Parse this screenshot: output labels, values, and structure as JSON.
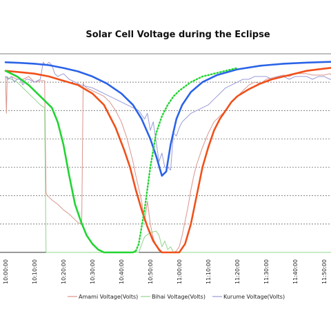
{
  "chart_data": {
    "type": "line",
    "title": "Solar Cell Voltage during the Eclipse",
    "xlabel": "",
    "ylabel": "",
    "x_ticks": [
      "10:00:00",
      "10:10:00",
      "10:20:00",
      "10:30:00",
      "10:40:00",
      "10:50:00",
      "11:00:00",
      "11:10:00",
      "11:20:00",
      "11:30:00",
      "11:40:00",
      "11:50:00"
    ],
    "x_range_minutes": [
      0,
      115
    ],
    "y_range": [
      0,
      7
    ],
    "y_gridlines": [
      1,
      2,
      3,
      4,
      5,
      6
    ],
    "legend_position": "bottom",
    "colors": {
      "amami": "#d9938c",
      "bihai": "#8fd68a",
      "kurume": "#9a9ad8",
      "fit_blue": "#2a63e8",
      "fit_orange": "#f0501a",
      "fit_green": "#22d432",
      "grid": "#555555"
    },
    "series": [
      {
        "name": "Amami Voltage(Volts)",
        "style": "measured",
        "x": [
          0,
          0.3,
          0.6,
          1,
          2,
          4,
          6,
          8,
          10,
          12,
          13.5,
          14,
          14.4,
          15,
          16,
          18,
          20,
          22,
          25,
          26.3,
          26.8,
          27,
          28,
          30,
          32,
          34,
          36,
          38,
          40,
          42,
          44,
          45,
          47,
          48,
          49,
          50,
          51,
          52,
          53,
          54,
          55,
          56,
          57,
          58,
          59,
          60,
          61,
          62,
          63,
          64,
          65,
          66,
          67,
          68,
          70,
          72,
          74,
          76,
          78,
          80,
          82,
          84,
          86,
          88,
          90,
          92,
          94,
          96,
          98,
          100,
          102,
          104,
          106,
          108,
          110,
          112,
          113,
          113.5,
          114,
          114.5,
          115
        ],
        "y": [
          6.2,
          4.9,
          6.2,
          6.1,
          6.2,
          6.1,
          6.1,
          6.2,
          6.0,
          6.05,
          6.05,
          2.1,
          2.0,
          1.95,
          1.85,
          1.7,
          1.5,
          1.35,
          1.05,
          1.0,
          6.0,
          5.9,
          5.8,
          5.7,
          5.6,
          5.5,
          5.3,
          5.0,
          4.6,
          4.0,
          3.2,
          2.7,
          1.8,
          1.1,
          1.8,
          1.0,
          0.5,
          0.25,
          0.05,
          0.0,
          0.0,
          0.0,
          0.0,
          0.0,
          0.05,
          0.2,
          0.6,
          1.1,
          1.6,
          2.2,
          2.7,
          3.1,
          3.4,
          3.7,
          4.2,
          4.6,
          4.8,
          5.0,
          5.3,
          5.5,
          5.7,
          5.9,
          6.0,
          5.95,
          6.1,
          6.15,
          6.2,
          6.25,
          6.2,
          6.3,
          6.3,
          6.3,
          6.25,
          6.25,
          6.25,
          6.3,
          6.2,
          2.0,
          6.1,
          6.2,
          6.2
        ]
      },
      {
        "name": "Bihai Voltage(Volts)",
        "style": "measured",
        "x": [
          0,
          2,
          4,
          6,
          8,
          10,
          12,
          13.5,
          14,
          14.5,
          15,
          16,
          18,
          20,
          22,
          24,
          26,
          28,
          30,
          32,
          34,
          36,
          38,
          40,
          42,
          44,
          46,
          48,
          50,
          52,
          53,
          54,
          55,
          56,
          57,
          58,
          60,
          62,
          64,
          66,
          68,
          70,
          72,
          74,
          76,
          78,
          80,
          82,
          84,
          86,
          88,
          90,
          92,
          94,
          96,
          98,
          100,
          102,
          104,
          106,
          108,
          110,
          112,
          114,
          115
        ],
        "y": [
          6.2,
          6.1,
          6.0,
          5.8,
          5.6,
          5.4,
          5.2,
          5.1,
          0.0,
          0.0,
          0.0,
          0.0,
          0.0,
          0.0,
          0.0,
          0.0,
          0.0,
          0.0,
          0.0,
          0.0,
          0.0,
          0.0,
          0.0,
          0.0,
          0.0,
          0.0,
          0.0,
          0.55,
          0.7,
          0.75,
          0.6,
          0.2,
          0.4,
          0.1,
          0.2,
          0.0,
          0.0,
          0.0,
          0.0,
          0.0,
          0.0,
          0.0,
          0.0,
          0.0,
          0.0,
          0.0,
          0.0,
          0.0,
          0.0,
          0.0,
          0.0,
          0.0,
          0.0,
          0.0,
          0.0,
          0.0,
          0.0,
          0.0,
          0.0,
          0.0,
          0.0,
          0.0,
          0.0,
          0.0,
          0.0
        ]
      },
      {
        "name": "Kurume Voltage(Volts)",
        "style": "measured",
        "x": [
          0,
          1,
          2,
          3,
          4,
          5,
          6,
          7,
          8,
          10,
          12,
          13,
          14,
          15,
          16,
          17,
          18,
          20,
          22,
          24,
          26,
          28,
          30,
          32,
          34,
          36,
          38,
          40,
          42,
          44,
          46,
          48,
          49,
          50,
          51,
          52,
          53,
          54,
          55,
          56,
          57,
          58,
          59,
          60,
          61,
          62,
          64,
          66,
          68,
          70,
          72,
          74,
          76,
          78,
          80,
          82,
          84,
          86,
          88,
          90,
          92,
          94,
          96,
          98,
          100,
          102,
          104,
          106,
          108,
          110,
          112,
          114,
          115
        ],
        "y": [
          6.2,
          6.1,
          6.2,
          6.0,
          6.1,
          6.1,
          5.9,
          6.1,
          6.1,
          6.0,
          6.1,
          6.7,
          6.6,
          6.7,
          6.6,
          6.3,
          6.2,
          6.3,
          6.1,
          6.0,
          5.9,
          5.85,
          5.8,
          5.7,
          5.6,
          5.5,
          5.4,
          5.3,
          5.2,
          5.1,
          5.0,
          4.7,
          4.9,
          4.3,
          4.6,
          3.9,
          3.2,
          3.5,
          3.0,
          3.0,
          2.9,
          4.2,
          4.1,
          4.4,
          4.6,
          4.7,
          4.9,
          5.0,
          5.1,
          5.2,
          5.4,
          5.6,
          5.8,
          5.9,
          6.0,
          6.1,
          6.1,
          6.2,
          6.2,
          6.2,
          6.1,
          6.2,
          6.2,
          6.1,
          6.2,
          6.2,
          6.2,
          6.1,
          6.2,
          6.2,
          6.1,
          6.1,
          6.1
        ]
      },
      {
        "style": "fit",
        "color_key": "fit_blue",
        "x": [
          0,
          5,
          10,
          15,
          20,
          25,
          30,
          35,
          40,
          44,
          47,
          50,
          52,
          54,
          55.5,
          57,
          59,
          61,
          64,
          68,
          73,
          80,
          88,
          96,
          104,
          110,
          115
        ],
        "y": [
          6.7,
          6.68,
          6.65,
          6.6,
          6.5,
          6.38,
          6.2,
          5.95,
          5.6,
          5.2,
          4.7,
          4.0,
          3.4,
          2.7,
          2.85,
          3.8,
          4.7,
          5.2,
          5.65,
          6.0,
          6.25,
          6.45,
          6.58,
          6.65,
          6.69,
          6.71,
          6.72
        ]
      },
      {
        "style": "fit",
        "color_key": "fit_orange",
        "x": [
          0,
          5,
          10,
          15,
          20,
          25,
          30,
          34,
          38,
          41,
          43,
          45,
          47,
          49,
          51,
          53,
          54,
          55,
          56,
          58,
          60,
          62,
          64,
          66,
          68,
          70,
          72,
          74,
          76,
          78,
          80,
          84,
          88,
          92,
          96,
          100,
          104,
          108,
          112,
          115
        ],
        "y": [
          6.4,
          6.35,
          6.3,
          6.2,
          6.05,
          5.9,
          5.6,
          5.2,
          4.4,
          3.6,
          3.0,
          2.2,
          1.5,
          0.9,
          0.4,
          0.1,
          0.0,
          0.0,
          0.0,
          0.0,
          0.0,
          0.3,
          1.0,
          2.0,
          3.0,
          3.7,
          4.3,
          4.7,
          5.0,
          5.3,
          5.5,
          5.75,
          5.95,
          6.1,
          6.2,
          6.3,
          6.4,
          6.45,
          6.5,
          6.52
        ]
      },
      {
        "style": "fit",
        "color_key": "fit_green",
        "x": [
          0,
          4,
          8,
          12,
          16,
          18,
          20,
          22,
          24,
          26,
          28,
          30,
          32,
          34,
          36,
          38,
          40,
          42,
          44,
          45,
          46,
          47,
          48,
          50,
          52,
          54,
          56,
          58,
          60,
          62,
          64,
          66,
          68,
          70,
          72,
          74,
          76,
          78,
          80
        ],
        "y": [
          6.4,
          6.2,
          5.9,
          5.5,
          5.1,
          4.6,
          3.8,
          2.7,
          1.7,
          1.1,
          0.6,
          0.3,
          0.1,
          0.0,
          0.0,
          0.0,
          0.0,
          0.0,
          0.0,
          0.05,
          0.3,
          0.9,
          1.5,
          3.0,
          4.2,
          4.8,
          5.2,
          5.5,
          5.7,
          5.85,
          6.0,
          6.1,
          6.2,
          6.25,
          6.3,
          6.35,
          6.4,
          6.45,
          6.5
        ]
      }
    ]
  }
}
